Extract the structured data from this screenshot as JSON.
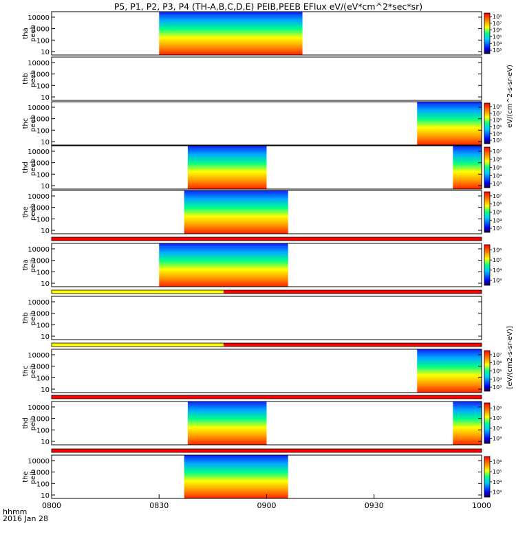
{
  "title": "P5, P1, P2, P3, P4 (TH-A,B,C,D,E) PEIB,PEEB EFlux eV/(eV*cm^2*sec*sr)",
  "colorbar_labels": {
    "electrons": "eV/(cm^2-s-sr-eV)",
    "ions": "[eV/(cm2-s-sr-eV)]"
  },
  "footer": {
    "time_label": "hhmm",
    "date": "2016 Jan 28"
  },
  "colors": {
    "red_bar": "#ff0000",
    "yellow_bar": "#ffff00",
    "frame": "#000000"
  },
  "chart_data": {
    "type": "heatmap",
    "x_ticks": [
      "0800",
      "0830",
      "0900",
      "0930",
      "1000"
    ],
    "xlim": [
      "0800",
      "1000"
    ],
    "ylim": [
      5,
      30000
    ],
    "y_scale": "log",
    "y_ticks": [
      "10",
      "100",
      "1000",
      "10000"
    ],
    "panels": [
      {
        "ylabel": [
          "tha",
          "peeb"
        ],
        "cbar_ticks": [
          "10^3",
          "10^4",
          "10^5",
          "10^6",
          "10^7",
          "10^8"
        ],
        "data_intervals": [
          [
            "0830",
            "0910"
          ]
        ],
        "status_bar_above": null
      },
      {
        "ylabel": [
          "thb",
          "peeb"
        ],
        "cbar_ticks": [],
        "data_intervals": [],
        "status_bar_above": null
      },
      {
        "ylabel": [
          "thc",
          "peeb"
        ],
        "cbar_ticks": [
          "10^3",
          "10^4",
          "10^5",
          "10^6",
          "10^7",
          "10^8"
        ],
        "data_intervals": [
          [
            "0942",
            "1000"
          ]
        ],
        "status_bar_above": null
      },
      {
        "ylabel": [
          "thd",
          "peeb"
        ],
        "cbar_ticks": [
          "10^3",
          "10^4",
          "10^5",
          "10^6",
          "10^7"
        ],
        "data_intervals": [
          [
            "0838",
            "0900"
          ],
          [
            "0952",
            "1000"
          ]
        ],
        "status_bar_above": null
      },
      {
        "ylabel": [
          "the",
          "peeb"
        ],
        "cbar_ticks": [
          "10^3",
          "10^4",
          "10^5",
          "10^6",
          "10^7"
        ],
        "data_intervals": [
          [
            "0837",
            "0906"
          ]
        ],
        "status_bar_above": null
      },
      {
        "ylabel": [
          "tha",
          "peib"
        ],
        "cbar_ticks": [
          "10^3",
          "10^4",
          "10^5",
          "10^6"
        ],
        "data_intervals": [
          [
            "0830",
            "0906"
          ]
        ],
        "status_bar_above": [
          "red"
        ]
      },
      {
        "ylabel": [
          "thb",
          "peib"
        ],
        "cbar_ticks": [],
        "data_intervals": [],
        "status_bar_above": [
          "yellow",
          "red"
        ]
      },
      {
        "ylabel": [
          "thc",
          "peib"
        ],
        "cbar_ticks": [
          "10^3",
          "10^4",
          "10^5",
          "10^6",
          "10^7"
        ],
        "data_intervals": [
          [
            "0942",
            "1000"
          ]
        ],
        "status_bar_above": [
          "yellow",
          "red"
        ]
      },
      {
        "ylabel": [
          "thd",
          "peib"
        ],
        "cbar_ticks": [
          "10^3",
          "10^4",
          "10^5",
          "10^6"
        ],
        "data_intervals": [
          [
            "0838",
            "0900"
          ],
          [
            "0952",
            "1000"
          ]
        ],
        "status_bar_above": [
          "red"
        ]
      },
      {
        "ylabel": [
          "the",
          "peib"
        ],
        "cbar_ticks": [
          "10^3",
          "10^4",
          "10^5",
          "10^6"
        ],
        "data_intervals": [
          [
            "0837",
            "0906"
          ]
        ],
        "status_bar_above": [
          "red"
        ]
      }
    ]
  }
}
